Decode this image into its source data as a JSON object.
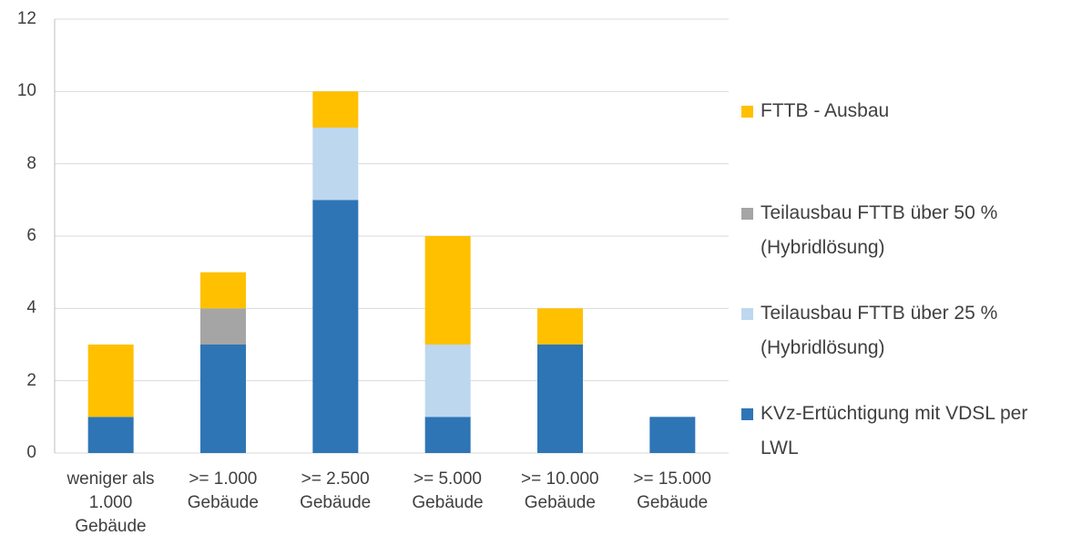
{
  "chart_data": {
    "type": "stacked_bar",
    "categories": [
      "weniger als 1.000 Gebäude",
      ">= 1.000 Gebäude",
      ">= 2.500 Gebäude",
      ">= 5.000 Gebäude",
      ">= 10.000 Gebäude",
      ">= 15.000 Gebäude"
    ],
    "series": [
      {
        "name": "KVz-Ertüchtigung mit VDSL per LWL",
        "color": "#2e75b6",
        "values": [
          1,
          3,
          7,
          1,
          3,
          1
        ]
      },
      {
        "name": "Teilausbau FTTB über 25 % (Hybridlösung)",
        "color": "#bdd7ee",
        "values": [
          0,
          0,
          2,
          2,
          0,
          0
        ]
      },
      {
        "name": "Teilausbau FTTB über 50 % (Hybridlösung)",
        "color": "#a5a5a5",
        "values": [
          0,
          1,
          0,
          0,
          0,
          0
        ]
      },
      {
        "name": "FTTB - Ausbau",
        "color": "#ffc000",
        "values": [
          2,
          1,
          1,
          3,
          1,
          0
        ]
      }
    ],
    "ylim": [
      0,
      12
    ],
    "yticks": [
      0,
      2,
      4,
      6,
      8,
      10,
      12
    ],
    "grid": true,
    "legend": "right"
  }
}
